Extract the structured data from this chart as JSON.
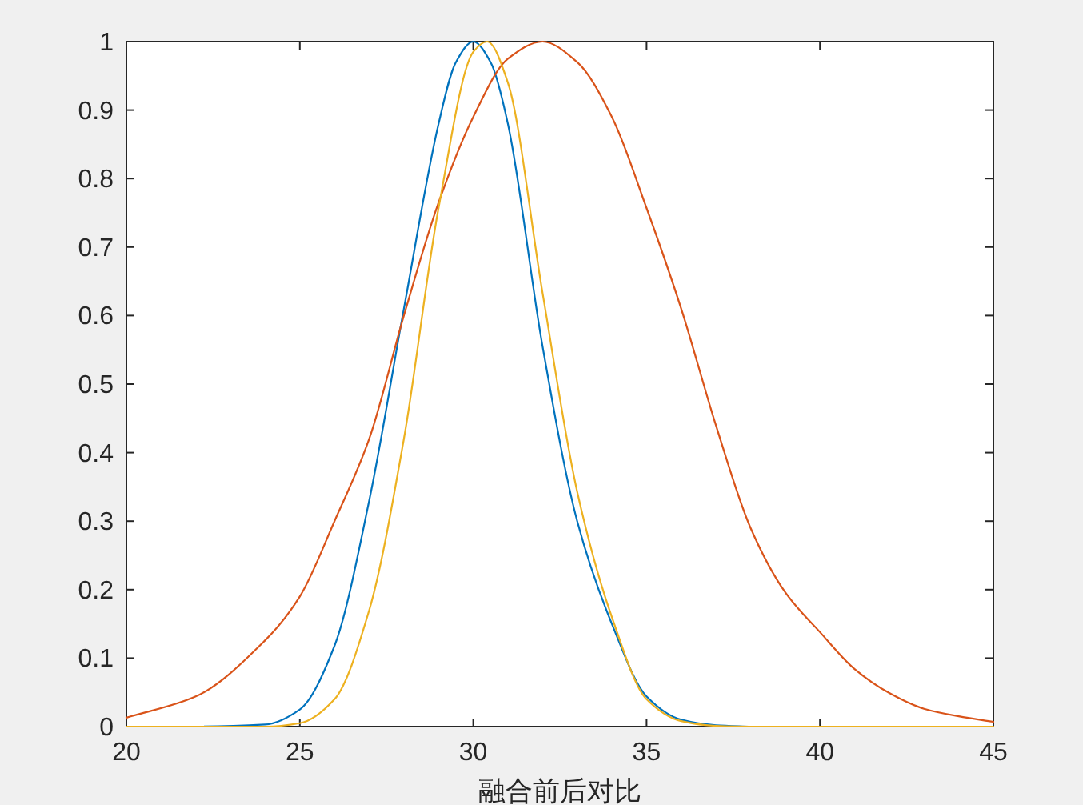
{
  "chart_data": {
    "type": "line",
    "xlabel": "融合前后对比",
    "xlim": [
      20,
      45
    ],
    "xticks": [
      20,
      25,
      30,
      35,
      40,
      45
    ],
    "ylim": [
      0,
      1
    ],
    "yticks": [
      0,
      0.1,
      0.2,
      0.3,
      0.4,
      0.5,
      0.6,
      0.7,
      0.8,
      0.9,
      1
    ],
    "grid": false,
    "series": [
      {
        "color": "#0072bd",
        "x": [
          20,
          22,
          24,
          25,
          26,
          27,
          28,
          29,
          29.5,
          30,
          30.5,
          31,
          32,
          33,
          34,
          35,
          36,
          37,
          38
        ],
        "values": [
          0,
          0,
          0.003,
          0.025,
          0.118,
          0.33,
          0.61,
          0.88,
          0.97,
          1,
          0.97,
          0.88,
          0.555,
          0.3,
          0.15,
          0.044,
          0.01,
          0.002,
          0
        ]
      },
      {
        "color": "#d95319",
        "x": [
          20,
          22,
          24,
          25,
          26,
          27,
          28,
          29,
          30,
          31,
          32,
          33,
          34,
          35,
          36,
          37,
          38,
          39,
          40,
          41,
          42,
          43,
          44,
          45
        ],
        "values": [
          0.013,
          0.044,
          0.126,
          0.19,
          0.3,
          0.42,
          0.6,
          0.765,
          0.89,
          0.975,
          1,
          0.97,
          0.89,
          0.757,
          0.61,
          0.44,
          0.29,
          0.196,
          0.138,
          0.084,
          0.049,
          0.026,
          0.015,
          0.007
        ]
      },
      {
        "color": "#edb120",
        "x": [
          20,
          24,
          25,
          26,
          27,
          28,
          29,
          30,
          30.4,
          31,
          32,
          33,
          34,
          35,
          36,
          37,
          38,
          40,
          45
        ],
        "values": [
          0,
          0,
          0.005,
          0.04,
          0.17,
          0.42,
          0.757,
          0.985,
          1,
          0.94,
          0.633,
          0.343,
          0.16,
          0.04,
          0.008,
          0.001,
          0,
          0,
          0
        ]
      }
    ]
  }
}
